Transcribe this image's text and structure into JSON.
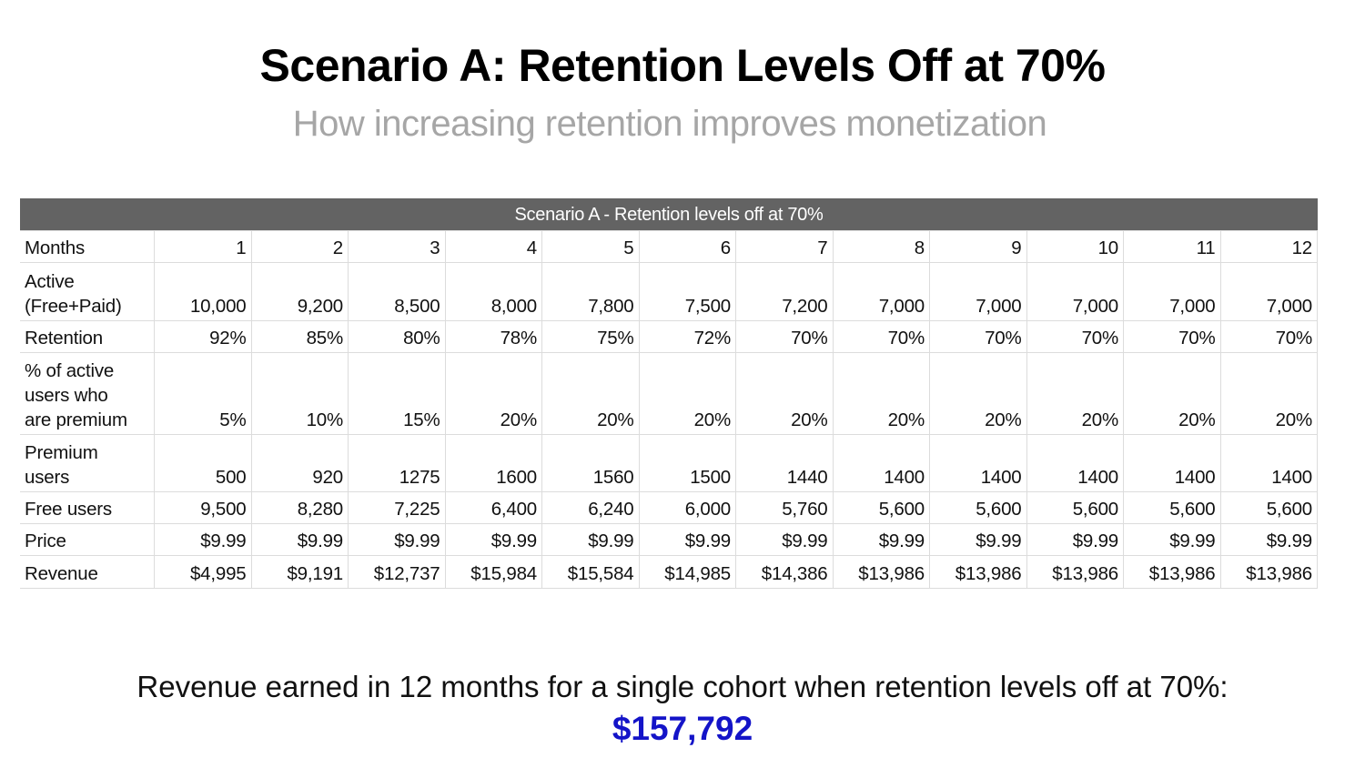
{
  "slide": {
    "title": "Scenario A: Retention Levels Off at 70%",
    "subtitle": "How increasing retention improves monetization",
    "summary_text": "Revenue earned in 12 months for a single cohort when retention levels off at 70%:",
    "total_revenue": "$157,792",
    "accent_color": "#1414c8"
  },
  "table": {
    "banner": "Scenario A - Retention levels off at 70%",
    "banner_color": "#636363",
    "rows": [
      {
        "label": "Months",
        "values": [
          "1",
          "2",
          "3",
          "4",
          "5",
          "6",
          "7",
          "8",
          "9",
          "10",
          "11",
          "12"
        ]
      },
      {
        "label": "Active (Free+Paid)",
        "label_lines": [
          "Active",
          "(Free+Paid)"
        ],
        "values": [
          "10,000",
          "9,200",
          "8,500",
          "8,000",
          "7,800",
          "7,500",
          "7,200",
          "7,000",
          "7,000",
          "7,000",
          "7,000",
          "7,000"
        ]
      },
      {
        "label": "Retention",
        "values": [
          "92%",
          "85%",
          "80%",
          "78%",
          "75%",
          "72%",
          "70%",
          "70%",
          "70%",
          "70%",
          "70%",
          "70%"
        ]
      },
      {
        "label": "% of active users who are premium",
        "label_lines": [
          "% of active",
          "users who",
          "are premium"
        ],
        "values": [
          "5%",
          "10%",
          "15%",
          "20%",
          "20%",
          "20%",
          "20%",
          "20%",
          "20%",
          "20%",
          "20%",
          "20%"
        ]
      },
      {
        "label": "Premium users",
        "label_lines": [
          "Premium",
          "users"
        ],
        "values": [
          "500",
          "920",
          "1275",
          "1600",
          "1560",
          "1500",
          "1440",
          "1400",
          "1400",
          "1400",
          "1400",
          "1400"
        ]
      },
      {
        "label": "Free users",
        "values": [
          "9,500",
          "8,280",
          "7,225",
          "6,400",
          "6,240",
          "6,000",
          "5,760",
          "5,600",
          "5,600",
          "5,600",
          "5,600",
          "5,600"
        ]
      },
      {
        "label": "Price",
        "values": [
          "$9.99",
          "$9.99",
          "$9.99",
          "$9.99",
          "$9.99",
          "$9.99",
          "$9.99",
          "$9.99",
          "$9.99",
          "$9.99",
          "$9.99",
          "$9.99"
        ]
      },
      {
        "label": "Revenue",
        "values": [
          "$4,995",
          "$9,191",
          "$12,737",
          "$15,984",
          "$15,584",
          "$14,985",
          "$14,386",
          "$13,986",
          "$13,986",
          "$13,986",
          "$13,986",
          "$13,986"
        ]
      }
    ]
  }
}
